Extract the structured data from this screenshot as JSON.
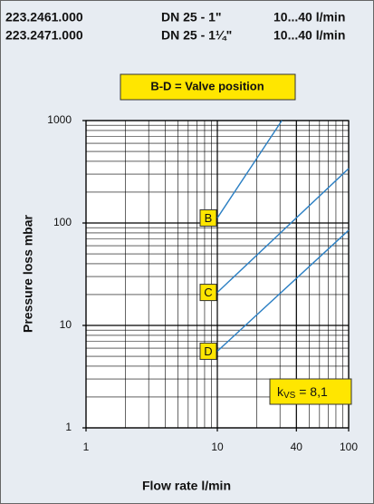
{
  "header": {
    "rows": [
      [
        "223.2461.000",
        "DN 25 - 1\"",
        "10...40 l/min"
      ],
      [
        "223.2471.000",
        "DN 25 - 1¼\"",
        "10...40 l/min"
      ]
    ]
  },
  "chart_data": {
    "type": "line",
    "legend_title": "B-D = Valve position",
    "xlabel": "Flow rate l/min",
    "ylabel": "Pressure loss mbar",
    "annotation": {
      "k": "k",
      "sub": "VS",
      "rest": " = 8,1"
    },
    "log_x": true,
    "log_y": true,
    "grid": true,
    "xlim": [
      1,
      100
    ],
    "ylim": [
      1,
      1000
    ],
    "xticks": [
      1,
      10,
      40,
      100
    ],
    "yticks": [
      1,
      10,
      100,
      1000
    ],
    "series": [
      {
        "name": "B",
        "color": "#2b7fc3",
        "x": [
          10,
          31
        ],
        "values": [
          112,
          1000
        ]
      },
      {
        "name": "C",
        "color": "#2b7fc3",
        "x": [
          10,
          100
        ],
        "values": [
          21,
          340
        ]
      },
      {
        "name": "D",
        "color": "#2b7fc3",
        "x": [
          10,
          100
        ],
        "values": [
          5.6,
          85
        ]
      }
    ]
  }
}
